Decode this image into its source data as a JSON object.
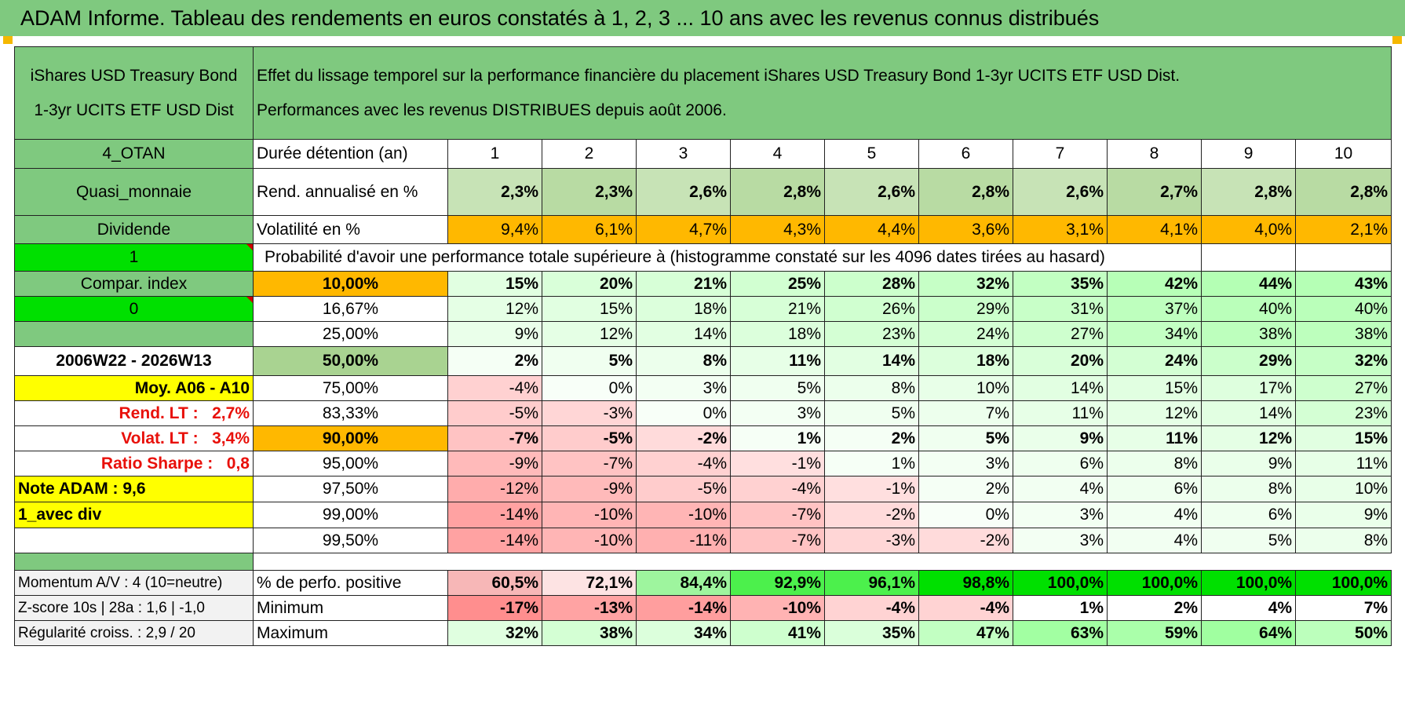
{
  "title": "ADAM Informe. Tableau des rendements en euros constatés à 1, 2, 3 ... 10 ans avec les revenus connus distribués",
  "fund_name_line1": "iShares USD Treasury Bond",
  "fund_name_line2": "1-3yr UCITS ETF USD Dist",
  "description_line1": "Effet du lissage temporel sur la performance financière du placement iShares USD Treasury Bond 1-3yr UCITS ETF USD Dist.",
  "description_line2": "Performances avec les revenus DISTRIBUES depuis août 2006.",
  "left_labels": {
    "code": "4_OTAN",
    "category": "Quasi_monnaie",
    "dividend": "Dividende",
    "flag1": "1",
    "compar": "Compar. index",
    "flag0": "0",
    "empty": "",
    "period": "2006W22 - 2026W13",
    "moy": "Moy. A06 - A10",
    "rend_lt_label": "Rend. LT :",
    "rend_lt_value": "2,7%",
    "volat_lt_label": "Volat. LT :",
    "volat_lt_value": "3,4%",
    "sharpe_label": "Ratio Sharpe :",
    "sharpe_value": "0,8",
    "note": "Note ADAM : 9,6",
    "avec_div": "1_avec div",
    "momentum": "Momentum A/V : 4 (10=neutre)",
    "zscore": "Z-score 10s | 28a : 1,6 | -1,0",
    "regularite": "Régularité croiss. : 2,9 / 20"
  },
  "row_labels": {
    "duree": "Durée détention (an)",
    "rend": "Rend. annualisé en %",
    "vol": "Volatilité en %",
    "proba": "Probabilité d'avoir une performance totale supérieure à (histogramme constaté sur les 4096 dates tirées au hasard)",
    "pos": "% de perfo. positive",
    "min": "Minimum",
    "max": "Maximum"
  },
  "years": [
    "1",
    "2",
    "3",
    "4",
    "5",
    "6",
    "7",
    "8",
    "9",
    "10"
  ],
  "rendement": [
    "2,3%",
    "2,3%",
    "2,6%",
    "2,8%",
    "2,6%",
    "2,8%",
    "2,6%",
    "2,7%",
    "2,8%",
    "2,8%"
  ],
  "volatilite": [
    "9,4%",
    "6,1%",
    "4,7%",
    "4,3%",
    "4,4%",
    "3,6%",
    "3,1%",
    "4,1%",
    "4,0%",
    "2,1%"
  ],
  "quantiles": [
    {
      "threshold": "10,00%",
      "values": [
        "15%",
        "20%",
        "21%",
        "25%",
        "28%",
        "32%",
        "35%",
        "42%",
        "44%",
        "43%"
      ]
    },
    {
      "threshold": "16,67%",
      "values": [
        "12%",
        "15%",
        "18%",
        "21%",
        "26%",
        "29%",
        "31%",
        "37%",
        "40%",
        "40%"
      ]
    },
    {
      "threshold": "25,00%",
      "values": [
        "9%",
        "12%",
        "14%",
        "18%",
        "23%",
        "24%",
        "27%",
        "34%",
        "38%",
        "38%"
      ]
    },
    {
      "threshold": "50,00%",
      "values": [
        "2%",
        "5%",
        "8%",
        "11%",
        "14%",
        "18%",
        "20%",
        "24%",
        "29%",
        "32%"
      ]
    },
    {
      "threshold": "75,00%",
      "values": [
        "-4%",
        "0%",
        "3%",
        "5%",
        "8%",
        "10%",
        "14%",
        "15%",
        "17%",
        "27%"
      ]
    },
    {
      "threshold": "83,33%",
      "values": [
        "-5%",
        "-3%",
        "0%",
        "3%",
        "5%",
        "7%",
        "11%",
        "12%",
        "14%",
        "23%"
      ]
    },
    {
      "threshold": "90,00%",
      "values": [
        "-7%",
        "-5%",
        "-2%",
        "1%",
        "2%",
        "5%",
        "9%",
        "11%",
        "12%",
        "15%"
      ]
    },
    {
      "threshold": "95,00%",
      "values": [
        "-9%",
        "-7%",
        "-4%",
        "-1%",
        "1%",
        "3%",
        "6%",
        "8%",
        "9%",
        "11%"
      ]
    },
    {
      "threshold": "97,50%",
      "values": [
        "-12%",
        "-9%",
        "-5%",
        "-4%",
        "-1%",
        "2%",
        "4%",
        "6%",
        "8%",
        "10%"
      ]
    },
    {
      "threshold": "99,00%",
      "values": [
        "-14%",
        "-10%",
        "-10%",
        "-7%",
        "-2%",
        "0%",
        "3%",
        "4%",
        "6%",
        "9%"
      ]
    },
    {
      "threshold": "99,50%",
      "values": [
        "-14%",
        "-10%",
        "-11%",
        "-7%",
        "-3%",
        "-2%",
        "3%",
        "4%",
        "5%",
        "8%"
      ]
    }
  ],
  "perf_positive": [
    "60,5%",
    "72,1%",
    "84,4%",
    "92,9%",
    "96,1%",
    "98,8%",
    "100,0%",
    "100,0%",
    "100,0%",
    "100,0%"
  ],
  "minimum": [
    "-17%",
    "-13%",
    "-14%",
    "-10%",
    "-4%",
    "-4%",
    "1%",
    "2%",
    "4%",
    "7%"
  ],
  "maximum": [
    "32%",
    "38%",
    "34%",
    "41%",
    "35%",
    "47%",
    "63%",
    "59%",
    "64%",
    "50%"
  ],
  "colors": {
    "header_green": "#7fc97f",
    "bright_green": "#00e000",
    "yellow": "#ffff00",
    "orange": "#ffb800",
    "red_text": "#e8100a"
  }
}
